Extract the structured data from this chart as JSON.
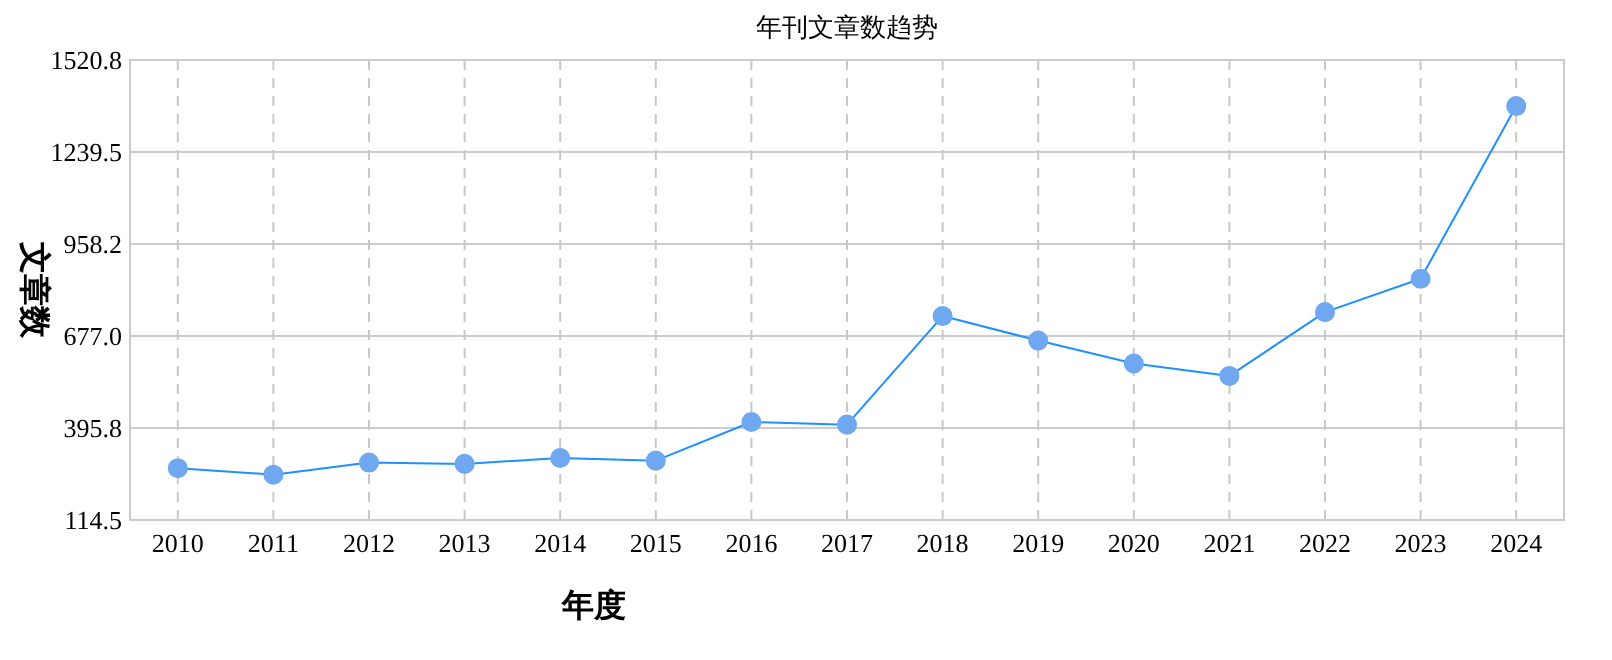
{
  "chart_data": {
    "type": "line",
    "title": "年刊文章数趋势",
    "xlabel": "年度",
    "ylabel": "文章数",
    "categories": [
      "2010",
      "2011",
      "2012",
      "2013",
      "2014",
      "2015",
      "2016",
      "2017",
      "2018",
      "2019",
      "2020",
      "2021",
      "2022",
      "2023",
      "2024"
    ],
    "series": [
      {
        "color": "#1e90ff",
        "values": [
          273,
          253,
          290,
          286,
          304,
          296,
          414,
          406,
          738,
          663,
          593,
          555,
          750,
          852,
          1380
        ]
      }
    ],
    "ylim": [
      114.5,
      1520.8
    ],
    "yticks": [
      114.5,
      395.8,
      {
        "value": 677,
        "label": "677.0"
      },
      958.2,
      1239.5,
      1520.8
    ],
    "grid": true,
    "marker": "circle"
  }
}
